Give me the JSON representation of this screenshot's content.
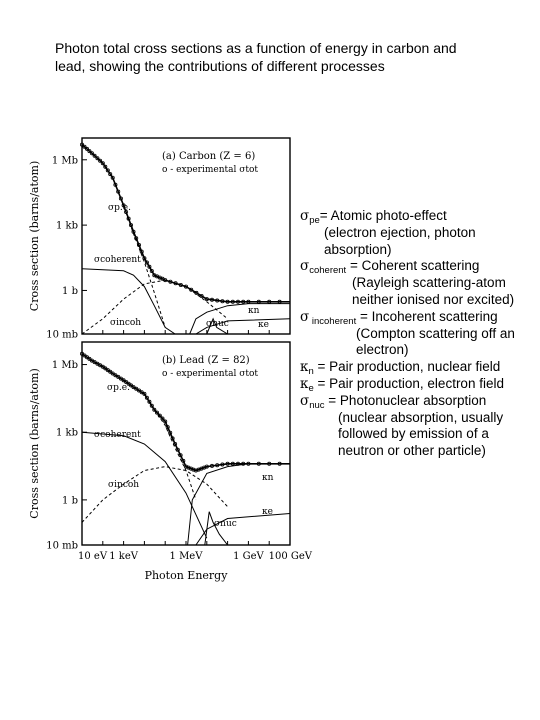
{
  "caption": {
    "line1": "Photon total cross sections as a function of energy in carbon and",
    "line2": "lead, showing the contributions of different processes"
  },
  "legend": [
    {
      "sym": "σ",
      "sub": "pe",
      "text": "= Atomic photo-effect",
      "cont": [
        "(electron ejection, photon",
        "absorption)"
      ],
      "indent": 24
    },
    {
      "sym": "σ",
      "sub": "coherent",
      "text": " = Coherent scattering",
      "cont": [
        "(Rayleigh scattering-atom",
        "neither ionised nor excited)"
      ],
      "indent": 52
    },
    {
      "sym": "σ",
      "sub": " incoherent",
      "text": " = Incoherent scattering",
      "cont": [
        "(Compton scattering off an",
        "electron)"
      ],
      "indent": 56
    },
    {
      "sym": "κ",
      "sub": "n",
      "text": " = Pair production, nuclear field",
      "cont": [],
      "indent": 0
    },
    {
      "sym": "κ",
      "sub": "e",
      "text": " = Pair production, electron field",
      "cont": [],
      "indent": 0
    },
    {
      "sym": "σ",
      "sub": "nuc",
      "text": " = Photonuclear absorption",
      "cont": [
        "(nuclear absorption, usually",
        "followed by emission of a",
        "neutron or other particle)"
      ],
      "indent": 38
    }
  ],
  "chart_data": [
    {
      "type": "line",
      "panel_title": "(a) Carbon (Z = 6)",
      "legend_note": "o - experimental σtot",
      "ylabel": "Cross section (barns/atom)",
      "xlabel": "",
      "x_scale": "log",
      "y_scale": "log",
      "xlim_eV": [
        10,
        100000000000.0
      ],
      "ylim_b": [
        0.01,
        10000000.0
      ],
      "yticks": [
        "1 Mb",
        "1 kb",
        "1 b",
        "10 mb"
      ],
      "curve_labels": [
        "σp.e.",
        "σcoherent",
        "σincoh",
        "σnuc",
        "κn",
        "κe"
      ],
      "series": [
        {
          "name": "σp.e.",
          "x": [
            10,
            30,
            100,
            300,
            1000,
            3000,
            10000,
            30000,
            100000
          ],
          "y": [
            5000000,
            2000000,
            700000,
            150000,
            8000,
            400,
            20,
            0.8,
            0.02
          ]
        },
        {
          "name": "σcoherent",
          "x": [
            10,
            1000,
            3000,
            10000,
            30000,
            100000,
            300000
          ],
          "y": [
            10,
            8,
            5,
            1.5,
            0.2,
            0.02,
            0.01
          ]
        },
        {
          "name": "σincoh",
          "x": [
            10,
            100,
            1000,
            10000,
            100000,
            1000000,
            10000000,
            100000000
          ],
          "y": [
            0.01,
            0.05,
            0.4,
            2,
            3,
            1.5,
            0.3,
            0.05
          ]
        },
        {
          "name": "σtot",
          "x": [
            10,
            30,
            100,
            300,
            1000,
            3000,
            10000,
            30000,
            100000,
            1000000,
            10000000,
            100000000,
            1000000000,
            100000000000
          ],
          "y": [
            5000000,
            2000000,
            700000,
            150000,
            8000,
            500,
            30,
            5,
            3,
            1.5,
            0.4,
            0.3,
            0.3,
            0.3
          ]
        },
        {
          "name": "κn",
          "x": [
            1500000,
            3000000,
            10000000,
            100000000,
            1000000000,
            100000000000
          ],
          "y": [
            0.01,
            0.05,
            0.1,
            0.2,
            0.25,
            0.25
          ]
        },
        {
          "name": "κe",
          "x": [
            3000000,
            10000000,
            100000000,
            100000000000
          ],
          "y": [
            0.01,
            0.02,
            0.04,
            0.05
          ]
        },
        {
          "name": "σnuc",
          "x": [
            10000000,
            20000000,
            30000000,
            100000000
          ],
          "y": [
            0.01,
            0.05,
            0.02,
            0.01
          ]
        }
      ]
    },
    {
      "type": "line",
      "panel_title": "(b) Lead (Z = 82)",
      "legend_note": "o - experimental σtot",
      "ylabel": "Cross section (barns/atom)",
      "xlabel": "Photon Energy",
      "x_scale": "log",
      "y_scale": "log",
      "xlim_eV": [
        10,
        100000000000.0
      ],
      "ylim_b": [
        0.01,
        10000000.0
      ],
      "xticks": [
        "10 eV",
        "1 keV",
        "1 MeV",
        "1 GeV",
        "100 GeV"
      ],
      "yticks": [
        "1 Mb",
        "1 kb",
        "1 b",
        "10 mb"
      ],
      "curve_labels": [
        "σp.e.",
        "σcoherent",
        "σincoh",
        "σnuc",
        "κn",
        "κe"
      ],
      "series": [
        {
          "name": "σp.e.",
          "x": [
            10,
            30,
            100,
            300,
            1000,
            3000,
            10000,
            30000,
            100000,
            300000,
            1000000,
            3000000
          ],
          "y": [
            3000000,
            1500000,
            800000,
            400000,
            200000,
            100000,
            50000,
            10000,
            2000,
            200,
            20,
            1
          ]
        },
        {
          "name": "σcoherent",
          "x": [
            10,
            1000,
            10000,
            100000,
            1000000,
            10000000
          ],
          "y": [
            1000,
            700,
            300,
            50,
            2,
            0.02
          ]
        },
        {
          "name": "σincoh",
          "x": [
            10,
            100,
            1000,
            10000,
            100000,
            1000000,
            10000000,
            100000000
          ],
          "y": [
            0.1,
            1,
            5,
            20,
            30,
            20,
            5,
            0.5
          ]
        },
        {
          "name": "σtot",
          "x": [
            10,
            30,
            100,
            300,
            1000,
            3000,
            10000,
            30000,
            100000,
            300000,
            1000000,
            3000000,
            10000000,
            100000000,
            1000000000,
            100000000000
          ],
          "y": [
            3000000,
            1500000,
            800000,
            400000,
            200000,
            100000,
            50000,
            10000,
            3000,
            300,
            30,
            20,
            30,
            40,
            40,
            40
          ]
        },
        {
          "name": "κn",
          "x": [
            1200000,
            2000000,
            10000000,
            100000000,
            1000000000,
            100000000000
          ],
          "y": [
            0.01,
            1,
            15,
            30,
            40,
            40
          ]
        },
        {
          "name": "κe",
          "x": [
            3000000,
            10000000,
            100000000,
            100000000000
          ],
          "y": [
            0.01,
            0.05,
            0.15,
            0.25
          ]
        },
        {
          "name": "σnuc",
          "x": [
            8000000,
            13000000,
            20000000,
            40000000,
            100000000
          ],
          "y": [
            0.01,
            0.3,
            0.1,
            0.03,
            0.01
          ]
        }
      ]
    }
  ]
}
